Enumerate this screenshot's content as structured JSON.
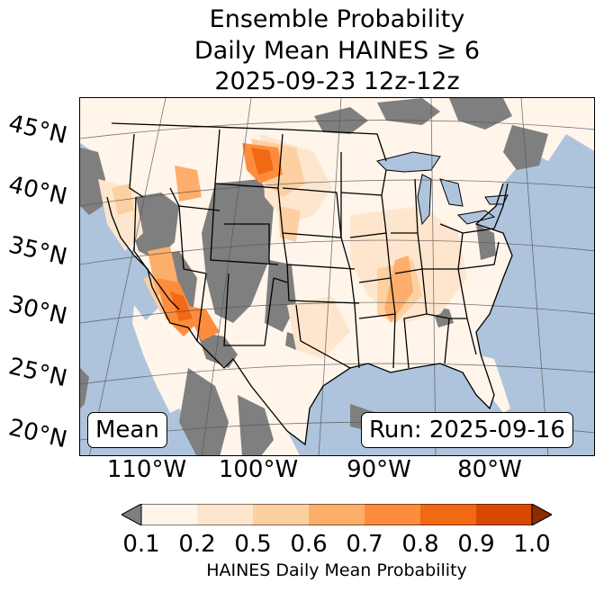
{
  "title": {
    "line1": "Ensemble Probability",
    "line2": "Daily Mean HAINES ≥ 6",
    "line3": "2025-09-23 12z-12z"
  },
  "map": {
    "lat_labels": [
      "45°N",
      "40°N",
      "35°N",
      "30°N",
      "25°N",
      "20°N"
    ],
    "lon_labels": [
      "110°W",
      "100°W",
      "90°W",
      "80°W"
    ],
    "mean_label": "Mean",
    "run_label": "Run: 2025-09-16",
    "colors": {
      "ocean": "#aec4dc",
      "land_low": "#fff5eb",
      "below_threshold": "#7f7f7f",
      "lake": "#aec4dc"
    }
  },
  "colorbar": {
    "ticks": [
      "0.1",
      "0.2",
      "0.5",
      "0.6",
      "0.7",
      "0.8",
      "0.9",
      "1.0"
    ],
    "colors": [
      "#fff5eb",
      "#fee6ce",
      "#fdd0a2",
      "#fdae6b",
      "#fd8d3c",
      "#f16913",
      "#d94801"
    ],
    "under_color": "#7f7f7f",
    "over_color": "#8c2d04",
    "label": "HAINES Daily Mean Probability"
  }
}
